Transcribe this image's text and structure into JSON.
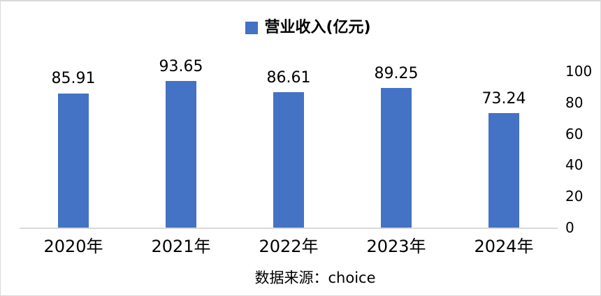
{
  "legend": {
    "label": "营业收入(亿元)",
    "marker_color": "#4472C4"
  },
  "chart_data": {
    "type": "bar",
    "title": "营业收入(亿元)",
    "categories": [
      "2020年",
      "2021年",
      "2022年",
      "2023年",
      "2024年"
    ],
    "values": [
      85.91,
      93.65,
      86.61,
      89.25,
      73.24
    ],
    "data_labels": [
      "85.91",
      "93.65",
      "86.61",
      "89.25",
      "73.24"
    ],
    "bar_color": "#4472C4",
    "xlabel": "",
    "ylabel": "",
    "ylim": [
      0,
      100
    ],
    "y_ticks": [
      0,
      20,
      40,
      60,
      80,
      100
    ],
    "y_axis_side": "right",
    "grid": false,
    "legend_position": "top",
    "axis_line_color": "#d9d9d9"
  },
  "source_note": "数据来源：choice"
}
